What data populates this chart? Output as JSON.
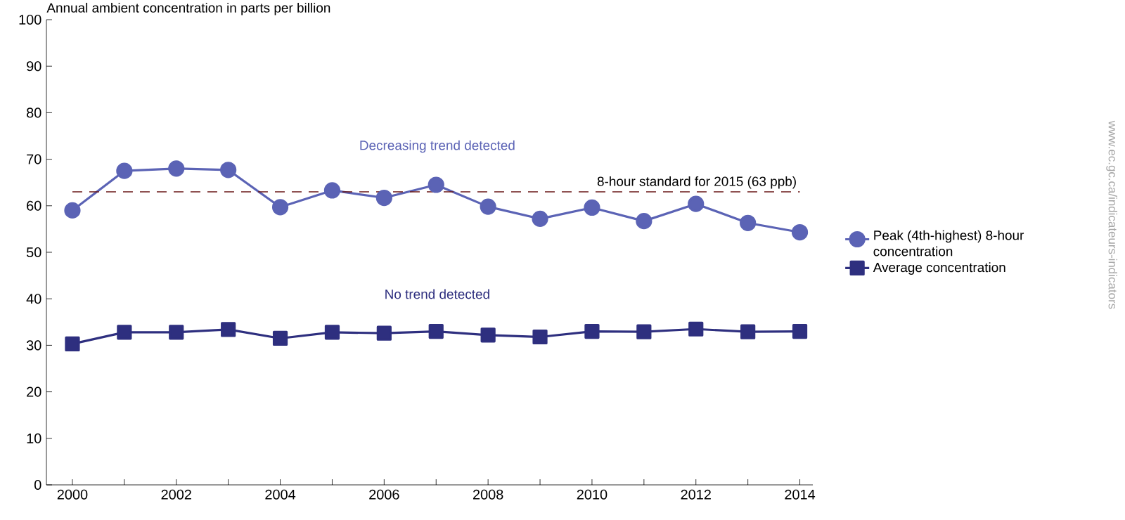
{
  "chart_data": {
    "type": "line",
    "ylabel": "Annual ambient concentration in parts per billion",
    "x": [
      2000,
      2001,
      2002,
      2003,
      2004,
      2005,
      2006,
      2007,
      2008,
      2009,
      2010,
      2011,
      2012,
      2013,
      2014
    ],
    "series": [
      {
        "name": "Peak (4th-highest) 8-hour concentration",
        "color": "#5b63b5",
        "marker": "circle",
        "values": [
          59,
          67.5,
          68,
          67.7,
          59.7,
          63.3,
          61.7,
          64.5,
          59.8,
          57.2,
          59.6,
          56.7,
          60.4,
          56.3,
          54.3
        ]
      },
      {
        "name": "Average concentration",
        "color": "#2e2f7f",
        "marker": "square",
        "values": [
          30.3,
          32.8,
          32.8,
          33.4,
          31.5,
          32.8,
          32.6,
          33,
          32.2,
          31.8,
          33,
          32.9,
          33.5,
          32.9,
          33
        ]
      }
    ],
    "xlim": [
      1999.5,
      2014.25
    ],
    "xticks": [
      2000,
      {
        "value": 2001,
        "label": null
      },
      2002,
      {
        "value": 2003,
        "label": null
      },
      2004,
      {
        "value": 2005,
        "label": null
      },
      2006,
      {
        "value": 2007,
        "label": null
      },
      2008,
      {
        "value": 2009,
        "label": null
      },
      2010,
      {
        "value": 2011,
        "label": null
      },
      2012,
      {
        "value": 2013,
        "label": null
      },
      2014
    ],
    "ylim": [
      0,
      100
    ],
    "yticks": [
      0,
      10,
      20,
      30,
      40,
      50,
      60,
      70,
      80,
      90,
      100
    ],
    "ref_lines": [
      {
        "axis": "y",
        "value": 63,
        "label": "8-hour standard for 2015 (63 ppb)",
        "color": "#6b1a1a",
        "line_style": "dashed"
      }
    ],
    "annotations": [
      "Decreasing trend detected",
      "No trend detected",
      "www.ec.gc.ca/indicateurs-indicators"
    ],
    "legend": "right",
    "grid": false,
    "line_style": "solid"
  }
}
